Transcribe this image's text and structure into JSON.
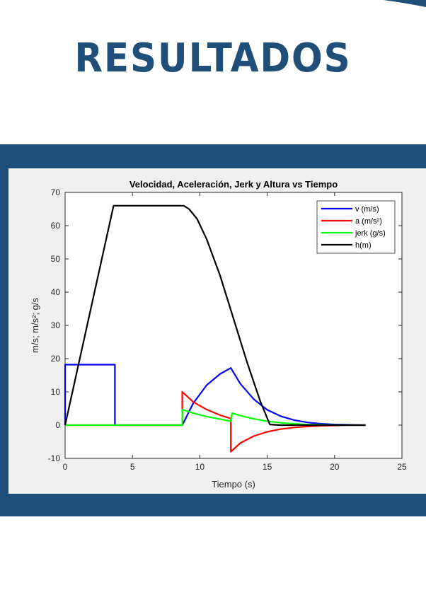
{
  "page": {
    "title": "RESULTADOS",
    "colors": {
      "title": "#1f4e79",
      "band": "#1d4f78",
      "figure_bg": "#f0f0f0"
    }
  },
  "chart_data": {
    "type": "line",
    "title": "Velocidad, Aceleración, Jerk y Altura vs Tiempo",
    "xlabel": "Tiempo (s)",
    "ylabel": "m/s;  m/s²;  g/s",
    "xlim": [
      0,
      25
    ],
    "ylim": [
      -10,
      70
    ],
    "xticks": [
      0,
      5,
      10,
      15,
      20,
      25
    ],
    "yticks": [
      -10,
      0,
      10,
      20,
      30,
      40,
      50,
      60,
      70
    ],
    "grid": false,
    "legend_position": "top-right",
    "series": [
      {
        "name": "v (m/s)",
        "color": "#0000ff",
        "x": [
          0,
          0,
          3.7,
          3.7,
          8.7,
          9.5,
          10.5,
          11.5,
          12.3,
          13,
          14,
          15,
          16,
          17,
          18,
          19,
          20,
          21,
          22.3
        ],
        "y": [
          0,
          18.2,
          18.2,
          0,
          0,
          6.5,
          12.0,
          15.4,
          17.2,
          12.5,
          7.8,
          4.6,
          2.7,
          1.5,
          0.8,
          0.4,
          0.2,
          0.1,
          0
        ]
      },
      {
        "name": "a  (m/s²)",
        "color": "#ff0000",
        "x": [
          0,
          8.7,
          8.7,
          9.5,
          10.5,
          11.5,
          12.3,
          12.3,
          13,
          14,
          15,
          16,
          17,
          18,
          19,
          20,
          21,
          22.3
        ],
        "y": [
          0,
          0,
          10,
          7.0,
          4.7,
          3.0,
          2.0,
          -8,
          -5.4,
          -3.3,
          -2.0,
          -1.2,
          -0.7,
          -0.4,
          -0.2,
          -0.1,
          0,
          0
        ]
      },
      {
        "name": "jerk (g/s)",
        "color": "#00ff00",
        "x": [
          0,
          8.7,
          8.7,
          9.5,
          10.5,
          11.5,
          12.3,
          12.4,
          13,
          14,
          15,
          16,
          17,
          18,
          19,
          20,
          21,
          22.3
        ],
        "y": [
          0,
          0,
          4.7,
          3.6,
          2.6,
          1.8,
          1.2,
          3.6,
          2.9,
          1.9,
          1.2,
          0.7,
          0.4,
          0.2,
          0.1,
          0,
          0,
          0
        ]
      },
      {
        "name": "h(m)",
        "color": "#000000",
        "x": [
          0,
          3.6,
          8.8,
          9.2,
          9.8,
          10.5,
          11.5,
          12.5,
          13.5,
          14.5,
          15.2,
          16,
          17,
          18,
          19,
          20,
          21,
          22.3
        ],
        "y": [
          0,
          66,
          66,
          65,
          62,
          56,
          45,
          32,
          19,
          7,
          0.2,
          0,
          0,
          0,
          0,
          0,
          0,
          0
        ]
      }
    ]
  }
}
